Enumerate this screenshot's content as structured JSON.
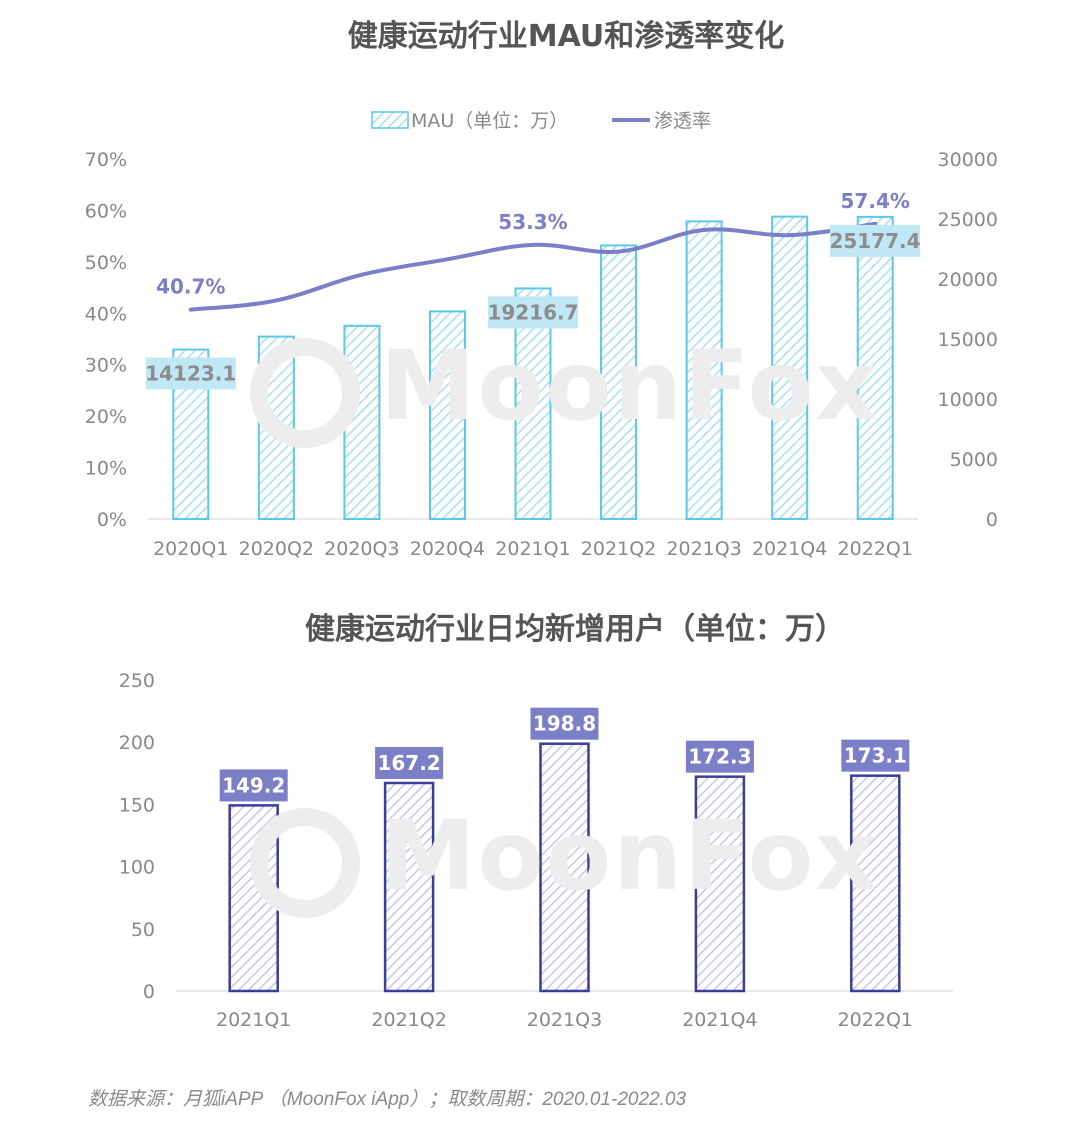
{
  "colors": {
    "mau_bar": "#5bc8e6",
    "mau_hatch": "#a7e0ef",
    "mau_label_bg": "#bfe7f4",
    "penetration_line": "#7b7fc8",
    "dnu_bar": "#3b3d9a",
    "dnu_hatch": "#c9c6e6",
    "dnu_label_bg": "#7b7fc8",
    "axis_text": "#888888",
    "title_text": "#555555"
  },
  "watermark": "MoonFox",
  "footer": "数据来源：月狐iAPP （MoonFox iApp）；取数周期：2020.01-2022.03",
  "chart_data": [
    {
      "type": "bar",
      "title": "健康运动行业MAU和渗透率变化",
      "legend": {
        "position": "top",
        "mau": "MAU（单位：万）",
        "rate": "渗透率"
      },
      "categories": [
        "2020Q1",
        "2020Q2",
        "2020Q3",
        "2020Q4",
        "2021Q1",
        "2021Q2",
        "2021Q3",
        "2021Q4",
        "2022Q1"
      ],
      "series": [
        {
          "name": "MAU（单位：万）",
          "axis": "right",
          "type": "bar",
          "values": [
            14123.1,
            15200,
            16100,
            17300,
            19216.7,
            22800,
            24800,
            25200,
            25177.4
          ],
          "data_labels": [
            "14123.1",
            "",
            "",
            "",
            "19216.7",
            "",
            "",
            "",
            "25177.4"
          ]
        },
        {
          "name": "渗透率",
          "axis": "left",
          "type": "line",
          "values": [
            40.7,
            42.5,
            47.5,
            50.5,
            53.3,
            52.0,
            56.2,
            55.2,
            57.4
          ],
          "data_labels": [
            "40.7%",
            "",
            "",
            "",
            "53.3%",
            "",
            "",
            "",
            "57.4%"
          ]
        }
      ],
      "y_left": {
        "ylim": [
          0,
          70
        ],
        "ticks": [
          "0%",
          "10%",
          "20%",
          "30%",
          "40%",
          "50%",
          "60%",
          "70%"
        ]
      },
      "y_right": {
        "ylim": [
          0,
          30000
        ],
        "ticks": [
          "0",
          "5000",
          "10000",
          "15000",
          "20000",
          "25000",
          "30000"
        ]
      },
      "grid": false
    },
    {
      "type": "bar",
      "title": "健康运动行业日均新增用户（单位：万）",
      "categories": [
        "2021Q1",
        "2021Q2",
        "2021Q3",
        "2021Q4",
        "2022Q1"
      ],
      "values": [
        149.2,
        167.2,
        198.8,
        172.3,
        173.1
      ],
      "data_labels": [
        "149.2",
        "167.2",
        "198.8",
        "172.3",
        "173.1"
      ],
      "ylim": [
        0,
        250
      ],
      "yticks": [
        "0",
        "50",
        "100",
        "150",
        "200",
        "250"
      ],
      "grid": false
    }
  ]
}
